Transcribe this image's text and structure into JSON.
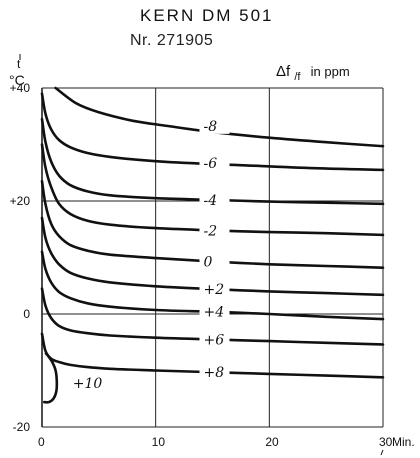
{
  "chart_data": {
    "type": "line",
    "title": "KERN DM 501",
    "subtitle": "Nr. 271905",
    "ylabel_symbol": "t",
    "ylabel_unit": "°C",
    "right_label": "Δf/f in ppm",
    "right_label_main": "Δf",
    "right_label_sub": "/f",
    "right_label_tail": "in ppm",
    "xlabel": "Min.",
    "xlim": [
      0,
      30
    ],
    "ylim": [
      -20,
      40
    ],
    "grid": true,
    "x_ticks": [
      {
        "value": 0,
        "label": "0"
      },
      {
        "value": 10,
        "label": "10"
      },
      {
        "value": 20,
        "label": "20"
      },
      {
        "value": 30,
        "label": "30"
      }
    ],
    "y_ticks": [
      {
        "value": 40,
        "label": "+40"
      },
      {
        "value": 20,
        "label": "+20"
      },
      {
        "value": 0,
        "label": "0"
      },
      {
        "value": -20,
        "label": "-20"
      }
    ],
    "series": [
      {
        "name": "-8",
        "x": [
          1.2,
          3,
          5,
          8,
          11,
          15,
          20,
          25,
          30
        ],
        "y": [
          40,
          37.3,
          35.7,
          34.2,
          33.3,
          32.2,
          31.2,
          30.4,
          29.7
        ],
        "label_at": [
          15,
          33.3
        ]
      },
      {
        "name": "-6",
        "x": [
          0,
          0.3,
          0.8,
          1.5,
          2.5,
          4,
          6,
          9,
          13,
          18,
          24,
          30
        ],
        "y": [
          39,
          35.5,
          32.7,
          30.8,
          29.5,
          28.5,
          27.8,
          27.2,
          26.7,
          26.3,
          25.8,
          25.5
        ],
        "label_at": [
          15,
          26.7
        ]
      },
      {
        "name": "-4",
        "x": [
          0,
          0.3,
          0.8,
          1.5,
          2.5,
          4,
          6,
          10,
          15,
          20,
          25,
          30
        ],
        "y": [
          34.5,
          30.5,
          27,
          24.5,
          22.8,
          21.7,
          21,
          20.5,
          20.2,
          19.9,
          19.7,
          19.5
        ],
        "label_at": [
          15,
          20.2
        ]
      },
      {
        "name": "-2",
        "x": [
          0,
          0.3,
          0.8,
          1.5,
          2.5,
          4,
          6,
          10,
          15,
          20,
          25,
          30
        ],
        "y": [
          30,
          26,
          22.5,
          19.5,
          17.7,
          16.5,
          15.8,
          15.2,
          14.8,
          14.5,
          14.3,
          14
        ],
        "label_at": [
          15,
          14.8
        ]
      },
      {
        "name": "0",
        "x": [
          0,
          0.3,
          0.8,
          1.5,
          2.5,
          4,
          6,
          10,
          15,
          20,
          25,
          30
        ],
        "y": [
          23.5,
          19.5,
          16,
          13.8,
          12.2,
          11.2,
          10.5,
          9.9,
          9.3,
          8.8,
          8.5,
          8.2
        ],
        "label_at": [
          15,
          9.3
        ]
      },
      {
        "name": "+2",
        "x": [
          0,
          0.3,
          0.8,
          1.5,
          2.5,
          4,
          6,
          10,
          15,
          20,
          25,
          30
        ],
        "y": [
          17,
          13.5,
          10.8,
          8.8,
          7.3,
          6.3,
          5.6,
          4.9,
          4.4,
          4,
          3.7,
          3.4
        ],
        "label_at": [
          15,
          4.4
        ]
      },
      {
        "name": "+4",
        "x": [
          0,
          0.3,
          0.8,
          1.5,
          2.5,
          4,
          6,
          10,
          15,
          20,
          25,
          30
        ],
        "y": [
          11,
          8,
          5.6,
          3.9,
          2.8,
          1.9,
          1.3,
          0.7,
          0.4,
          0,
          -0.5,
          -0.9
        ],
        "label_at": [
          15,
          0.4
        ]
      },
      {
        "name": "+6",
        "x": [
          0,
          0.3,
          0.8,
          1.5,
          2.5,
          4,
          6,
          10,
          15,
          20,
          25,
          30
        ],
        "y": [
          4.5,
          1.5,
          -0.7,
          -2.1,
          -2.9,
          -3.4,
          -3.8,
          -4.2,
          -4.5,
          -4.8,
          -5.1,
          -5.4
        ],
        "label_at": [
          15,
          -4.5
        ]
      },
      {
        "name": "+8",
        "x": [
          0,
          0.3,
          0.8,
          1.5,
          2.5,
          4,
          6,
          10,
          15,
          20,
          25,
          30
        ],
        "y": [
          -3.5,
          -6.5,
          -7.9,
          -8.5,
          -9,
          -9.4,
          -9.7,
          -10,
          -10.3,
          -10.6,
          -10.9,
          -11.2
        ],
        "label_at": [
          15,
          -10.3
        ]
      },
      {
        "name": "+10",
        "x": [
          0.35,
          0.6,
          0.9,
          1.2,
          1.3,
          1.25,
          1,
          0.6,
          0.2
        ],
        "y": [
          -7,
          -7.6,
          -8.5,
          -10,
          -12,
          -13.8,
          -15,
          -15.6,
          -15.6
        ],
        "label_at": [
          3.5,
          -12.2
        ]
      }
    ]
  }
}
